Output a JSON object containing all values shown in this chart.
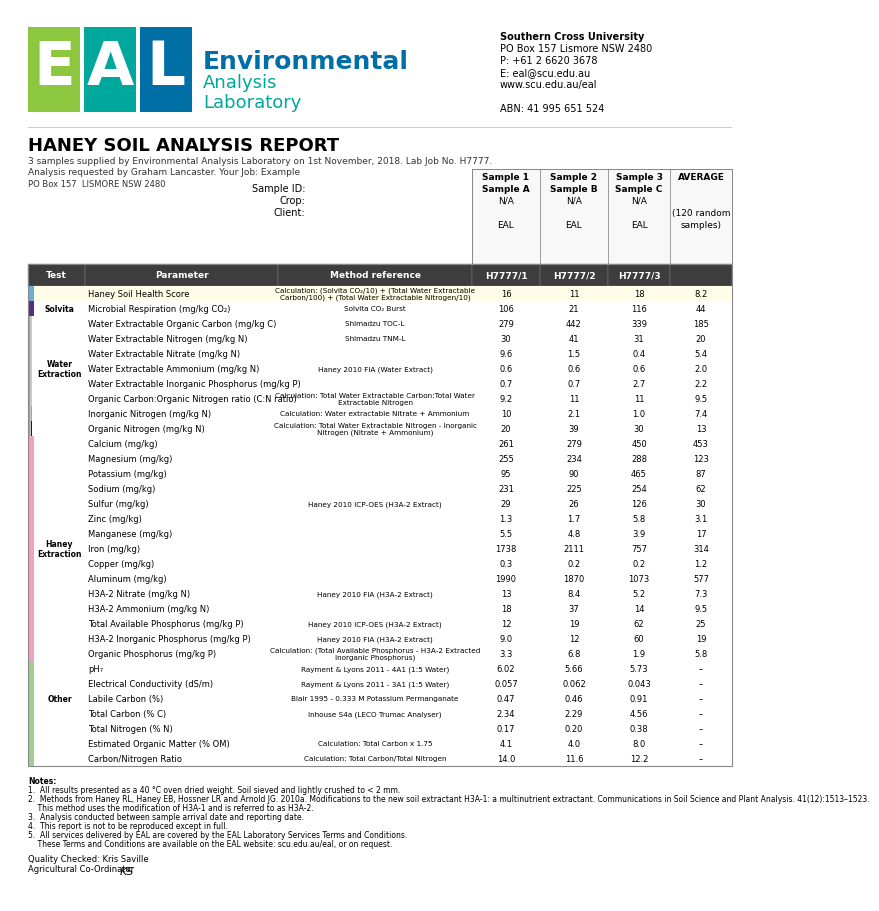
{
  "title": "HANEY SOIL ANALYSIS REPORT",
  "subtitle1": "3 samples supplied by Environmental Analysis Laboratory on 1st November, 2018. Lab Job No. H7777.",
  "subtitle2": "Analysis requested by Graham Lancaster. Your Job: Example",
  "address": "PO Box 157  LISMORE NSW 2480",
  "university": "Southern Cross University",
  "uni_address": "PO Box 157 Lismore NSW 2480",
  "phone": "P: +61 2 6620 3678",
  "email": "E: eal@scu.edu.au",
  "website": "www.scu.edu.au/eal",
  "abn": "ABN: 41 995 651 524",
  "eal_green": "#8dc63f",
  "eal_teal": "#00a79d",
  "eal_blue": "#006fa6",
  "bg_color": "#ffffff",
  "rows": [
    {
      "test": "",
      "test_label_row": false,
      "parameter": "Haney Soil Health Score",
      "method": "Calculation: (Solvita CO₂/10) + (Total Water Extractable\nCarbon/100) + (Total Water Extractable Nitrogen/10)",
      "s1": "16",
      "s2": "11",
      "s3": "18",
      "avg": "8.2",
      "row_bg": "#fffde7",
      "side_colors": [
        "#6baed6"
      ]
    },
    {
      "test": "Solvita",
      "test_label_row": true,
      "parameter": "Microbial Respiration (mg/kg CO₂)",
      "method": "Solvita CO₂ Burst",
      "s1": "106",
      "s2": "21",
      "s3": "116",
      "avg": "44",
      "row_bg": "#ffffff",
      "side_colors": [
        "#5a2d82"
      ]
    },
    {
      "test": "",
      "test_label_row": false,
      "parameter": "Water Extractable Organic Carbon (mg/kg C)",
      "method": "Shimadzu TOC-L",
      "s1": "279",
      "s2": "442",
      "s3": "339",
      "avg": "185",
      "row_bg": "#ffffff",
      "side_colors": [
        "#8B5E3C",
        "#a0a0a0",
        "#c8c8c8",
        "#c8c8c8"
      ]
    },
    {
      "test": "",
      "test_label_row": false,
      "parameter": "Water Extractable Nitrogen (mg/kg N)",
      "method": "Shimadzu TNM-L",
      "s1": "30",
      "s2": "41",
      "s3": "31",
      "avg": "20",
      "row_bg": "#ffffff",
      "side_colors": [
        "#8B5E3C",
        "#a0a0a0",
        "#c8c8c8",
        "#c8c8c8"
      ]
    },
    {
      "test": "",
      "test_label_row": false,
      "parameter": "Water Extractable Nitrate (mg/kg N)",
      "method": "",
      "s1": "9.6",
      "s2": "1.5",
      "s3": "0.4",
      "avg": "5.4",
      "row_bg": "#ffffff",
      "side_colors": [
        "#8B5E3C",
        "#a0a0a0",
        "#c8c8c8",
        "#c8c8c8"
      ]
    },
    {
      "test": "Water\nExtraction",
      "test_label_row": true,
      "parameter": "Water Extractable Ammonium (mg/kg N)",
      "method": "Haney 2010 FIA (Water Extract)",
      "s1": "0.6",
      "s2": "0.6",
      "s3": "0.6",
      "avg": "2.0",
      "row_bg": "#ffffff",
      "side_colors": [
        "#8B5E3C",
        "#a0a0a0",
        "#c8c8c8",
        "#c8c8c8"
      ]
    },
    {
      "test": "",
      "test_label_row": false,
      "parameter": "Water Extractable Inorganic Phosphorus (mg/kg P)",
      "method": "",
      "s1": "0.7",
      "s2": "0.7",
      "s3": "2.7",
      "avg": "2.2",
      "row_bg": "#ffffff",
      "side_colors": [
        "#8B5E3C",
        "#a0a0a0",
        "#c8c8c8",
        "#c8c8c8"
      ]
    },
    {
      "test": "",
      "test_label_row": false,
      "parameter": "Organic Carbon:Organic Nitrogen ratio (C:N ratio)",
      "method": "Calculation: Total Water Extractable Carbon:Total Water\nExtractable Nitrogen",
      "s1": "9.2",
      "s2": "11",
      "s3": "11",
      "avg": "9.5",
      "row_bg": "#ffffff",
      "side_colors": [
        "#8B5E3C",
        "#a0a0a0",
        "#c8c8c8",
        "#e8d44d"
      ]
    },
    {
      "test": "",
      "test_label_row": false,
      "parameter": "Inorganic Nitrogen (mg/kg N)",
      "method": "Calculation: Water extractable Nitrate + Ammonium",
      "s1": "10",
      "s2": "2.1",
      "s3": "1.0",
      "avg": "7.4",
      "row_bg": "#ffffff",
      "side_colors": [
        "#8B5E3C",
        "#a0a0a0",
        "#c8c8c8",
        "#c8a060"
      ]
    },
    {
      "test": "",
      "test_label_row": false,
      "parameter": "Organic Nitrogen (mg/kg N)",
      "method": "Calculation: Total Water Extractable Nitrogen - Inorganic\nNitrogen (Nitrate + Ammonium)",
      "s1": "20",
      "s2": "39",
      "s3": "30",
      "avg": "13",
      "row_bg": "#ffffff",
      "side_colors": [
        "#8B5E3C",
        "#a0a0a0",
        "#c8c8c8",
        "#1a1a1a"
      ]
    },
    {
      "test": "",
      "test_label_row": false,
      "parameter": "Calcium (mg/kg)",
      "method": "",
      "s1": "261",
      "s2": "279",
      "s3": "450",
      "avg": "453",
      "row_bg": "#ffffff",
      "side_colors": [
        "#f4a0c0"
      ]
    },
    {
      "test": "",
      "test_label_row": false,
      "parameter": "Magnesium (mg/kg)",
      "method": "",
      "s1": "255",
      "s2": "234",
      "s3": "288",
      "avg": "123",
      "row_bg": "#ffffff",
      "side_colors": [
        "#f4a0c0"
      ]
    },
    {
      "test": "",
      "test_label_row": false,
      "parameter": "Potassium (mg/kg)",
      "method": "",
      "s1": "95",
      "s2": "90",
      "s3": "465",
      "avg": "87",
      "row_bg": "#ffffff",
      "side_colors": [
        "#f4a0c0"
      ]
    },
    {
      "test": "",
      "test_label_row": false,
      "parameter": "Sodium (mg/kg)",
      "method": "",
      "s1": "231",
      "s2": "225",
      "s3": "254",
      "avg": "62",
      "row_bg": "#ffffff",
      "side_colors": [
        "#f4a0c0"
      ]
    },
    {
      "test": "",
      "test_label_row": false,
      "parameter": "Sulfur (mg/kg)",
      "method": "Haney 2010 ICP-OES (H3A-2 Extract)",
      "s1": "29",
      "s2": "26",
      "s3": "126",
      "avg": "30",
      "row_bg": "#ffffff",
      "side_colors": [
        "#f4a0c0"
      ]
    },
    {
      "test": "",
      "test_label_row": false,
      "parameter": "Zinc (mg/kg)",
      "method": "",
      "s1": "1.3",
      "s2": "1.7",
      "s3": "5.8",
      "avg": "3.1",
      "row_bg": "#ffffff",
      "side_colors": [
        "#f4a0c0"
      ]
    },
    {
      "test": "",
      "test_label_row": false,
      "parameter": "Manganese (mg/kg)",
      "method": "",
      "s1": "5.5",
      "s2": "4.8",
      "s3": "3.9",
      "avg": "17",
      "row_bg": "#ffffff",
      "side_colors": [
        "#f4a0c0"
      ]
    },
    {
      "test": "Haney\nExtraction",
      "test_label_row": true,
      "parameter": "Iron (mg/kg)",
      "method": "",
      "s1": "1738",
      "s2": "2111",
      "s3": "757",
      "avg": "314",
      "row_bg": "#ffffff",
      "side_colors": [
        "#f4a0c0"
      ]
    },
    {
      "test": "",
      "test_label_row": false,
      "parameter": "Copper (mg/kg)",
      "method": "",
      "s1": "0.3",
      "s2": "0.2",
      "s3": "0.2",
      "avg": "1.2",
      "row_bg": "#ffffff",
      "side_colors": [
        "#f4a0c0"
      ]
    },
    {
      "test": "",
      "test_label_row": false,
      "parameter": "Aluminum (mg/kg)",
      "method": "",
      "s1": "1990",
      "s2": "1870",
      "s3": "1073",
      "avg": "577",
      "row_bg": "#ffffff",
      "side_colors": [
        "#f4a0c0"
      ]
    },
    {
      "test": "",
      "test_label_row": false,
      "parameter": "H3A-2 Nitrate (mg/kg N)",
      "method": "Haney 2010 FIA (H3A-2 Extract)",
      "s1": "13",
      "s2": "8.4",
      "s3": "5.2",
      "avg": "7.3",
      "row_bg": "#ffffff",
      "side_colors": [
        "#f4a0c0"
      ]
    },
    {
      "test": "",
      "test_label_row": false,
      "parameter": "H3A-2 Ammonium (mg/kg N)",
      "method": "",
      "s1": "18",
      "s2": "37",
      "s3": "14",
      "avg": "9.5",
      "row_bg": "#ffffff",
      "side_colors": [
        "#f4a0c0"
      ]
    },
    {
      "test": "",
      "test_label_row": false,
      "parameter": "Total Available Phosphorus (mg/kg P)",
      "method": "Haney 2010 ICP-OES (H3A-2 Extract)",
      "s1": "12",
      "s2": "19",
      "s3": "62",
      "avg": "25",
      "row_bg": "#ffffff",
      "side_colors": [
        "#f4a0c0"
      ]
    },
    {
      "test": "",
      "test_label_row": false,
      "parameter": "H3A-2 Inorganic Phosphorus (mg/kg P)",
      "method": "Haney 2010 FIA (H3A-2 Extract)",
      "s1": "9.0",
      "s2": "12",
      "s3": "60",
      "avg": "19",
      "row_bg": "#ffffff",
      "side_colors": [
        "#f4a0c0"
      ]
    },
    {
      "test": "",
      "test_label_row": false,
      "parameter": "Organic Phosphorus (mg/kg P)",
      "method": "Calculation: (Total Available Phosphorus - H3A-2 Extracted\nInorganic Phosphorus)",
      "s1": "3.3",
      "s2": "6.8",
      "s3": "1.9",
      "avg": "5.8",
      "row_bg": "#ffffff",
      "side_colors": [
        "#f4a0c0"
      ]
    },
    {
      "test": "",
      "test_label_row": false,
      "parameter": "pH₇",
      "method": "Rayment & Lyons 2011 - 4A1 (1:5 Water)",
      "s1": "6.02",
      "s2": "5.66",
      "s3": "5.73",
      "avg": "–",
      "row_bg": "#ffffff",
      "side_colors": [
        "#90ee90"
      ]
    },
    {
      "test": "",
      "test_label_row": false,
      "parameter": "Electrical Conductivity (dS/m)",
      "method": "Rayment & Lyons 2011 - 3A1 (1:5 Water)",
      "s1": "0.057",
      "s2": "0.062",
      "s3": "0.043",
      "avg": "–",
      "row_bg": "#ffffff",
      "side_colors": [
        "#90ee90"
      ]
    },
    {
      "test": "Other",
      "test_label_row": true,
      "parameter": "Labile Carbon (%)",
      "method": "Blair 1995 - 0.333 M Potassium Permanganate",
      "s1": "0.47",
      "s2": "0.46",
      "s3": "0.91",
      "avg": "–",
      "row_bg": "#ffffff",
      "side_colors": [
        "#90ee90"
      ]
    },
    {
      "test": "",
      "test_label_row": false,
      "parameter": "Total Carbon (% C)",
      "method": "Inhouse S4a (LECO Trumac Analyser)",
      "s1": "2.34",
      "s2": "2.29",
      "s3": "4.56",
      "avg": "–",
      "row_bg": "#ffffff",
      "side_colors": [
        "#90ee90"
      ]
    },
    {
      "test": "",
      "test_label_row": false,
      "parameter": "Total Nitrogen (% N)",
      "method": "",
      "s1": "0.17",
      "s2": "0.20",
      "s3": "0.38",
      "avg": "–",
      "row_bg": "#ffffff",
      "side_colors": [
        "#90ee90"
      ]
    },
    {
      "test": "",
      "test_label_row": false,
      "parameter": "Estimated Organic Matter (% OM)",
      "method": "Calculation: Total Carbon x 1.75",
      "s1": "4.1",
      "s2": "4.0",
      "s3": "8.0",
      "avg": "–",
      "row_bg": "#ffffff",
      "side_colors": [
        "#90ee90"
      ]
    },
    {
      "test": "",
      "test_label_row": false,
      "parameter": "Carbon/Nitrogen Ratio",
      "method": "Calculation: Total Carbon/Total Nitrogen",
      "s1": "14.0",
      "s2": "11.6",
      "s3": "12.2",
      "avg": "–",
      "row_bg": "#ffffff",
      "side_colors": [
        "#90ee90"
      ]
    }
  ],
  "notes": [
    "Notes:",
    "1.  All results presented as a 40 °C oven dried weight. Soil sieved and lightly crushed to < 2 mm.",
    "2.  Methods from Haney RL, Haney EB, Hossner LR and Arnold JG. 2010a. Modifications to the new soil extractant H3A-1: a multinutrient extractant. Communications in Soil Science and Plant Analysis. 41(12):1513–1523.",
    "    This method uses the modification of H3A-1 and is referred to as H3A-2.",
    "3.  Analysis conducted between sample arrival date and reporting date.",
    "4.  This report is not to be reproduced except in full.",
    "5.  All services delivered by EAL are covered by the EAL Laboratory Services Terms and Conditions.",
    "    These Terms and Conditions are available on the EAL website: scu.edu.au/eal, or on request."
  ]
}
